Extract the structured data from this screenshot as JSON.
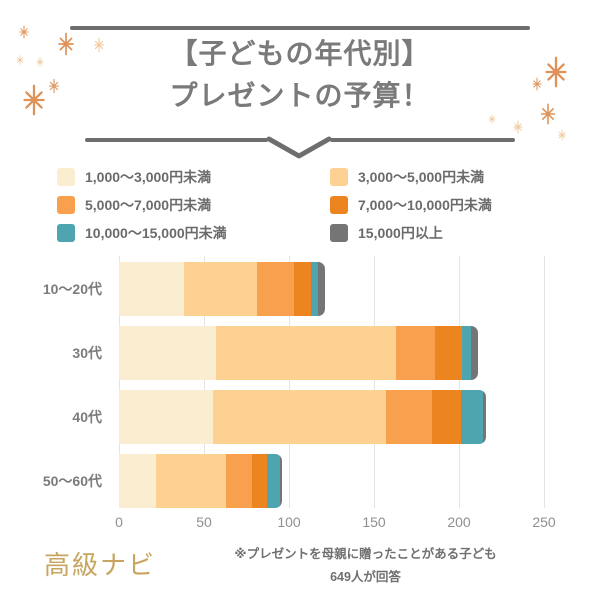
{
  "title": {
    "line1": "【子どもの年代別】",
    "line2": "プレゼントの予算！"
  },
  "legend": [
    {
      "label": "1,000〜3,000円未満",
      "color": "#FBEED0"
    },
    {
      "label": "3,000〜5,000円未満",
      "color": "#FCD191"
    },
    {
      "label": "5,000〜7,000円未満",
      "color": "#F8A04E"
    },
    {
      "label": "7,000〜10,000円未満",
      "color": "#EC8420"
    },
    {
      "label": "10,000〜15,000円未満",
      "color": "#4FA5AF"
    },
    {
      "label": "15,000円以上",
      "color": "#757575"
    }
  ],
  "chart_data": {
    "type": "bar",
    "orientation": "horizontal",
    "stacked": true,
    "title": "【子どもの年代別】プレゼントの予算！",
    "categories": [
      "10〜20代",
      "30代",
      "40代",
      "50〜60代"
    ],
    "series": [
      {
        "name": "1,000〜3,000円未満",
        "color": "#FBEED0",
        "values": [
          38,
          57,
          55,
          22
        ]
      },
      {
        "name": "3,000〜5,000円未満",
        "color": "#FCD191",
        "values": [
          43,
          106,
          102,
          41
        ]
      },
      {
        "name": "5,000〜7,000円未満",
        "color": "#F8A04E",
        "values": [
          22,
          23,
          27,
          15
        ]
      },
      {
        "name": "7,000〜10,000円未満",
        "color": "#EC8420",
        "values": [
          10,
          16,
          17,
          9
        ]
      },
      {
        "name": "10,000〜15,000円未満",
        "color": "#4FA5AF",
        "values": [
          4,
          5,
          13,
          8
        ]
      },
      {
        "name": "15,000円以上",
        "color": "#757575",
        "values": [
          4,
          4,
          2,
          1
        ]
      }
    ],
    "xlabel": "",
    "ylabel": "",
    "x_ticks": [
      0,
      50,
      100,
      150,
      200,
      250
    ],
    "xlim": [
      0,
      250
    ],
    "grid": true,
    "legend_position": "top"
  },
  "footer": {
    "brand": "高級ナビ",
    "note_line1": "※プレゼントを母親に贈ったことがある子ども",
    "note_line2": "649人が回答"
  },
  "colors": {
    "background": "#FFFFFF",
    "title_text": "#7A7A7A",
    "rule": "#6E6E6E",
    "legend_text": "#6B6B6B",
    "category_label": "#7B7B7B",
    "axis_text": "#8F8F8F",
    "grid": "#E4E4E4",
    "brand": "#C7A55F",
    "note": "#6F6F6F",
    "sparkle_dark": "#DE9257",
    "sparkle_light": "#F0C89C"
  }
}
